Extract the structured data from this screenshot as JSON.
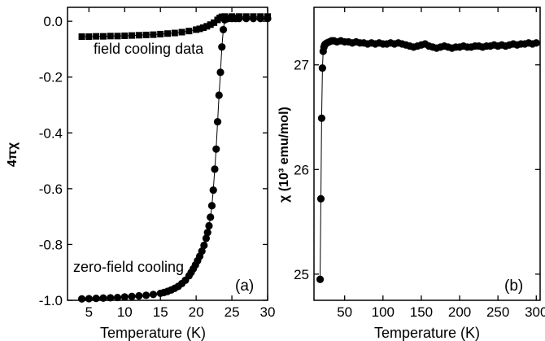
{
  "chart_data": [
    {
      "type": "scatter",
      "panel_label": "(a)",
      "xlabel": "Temperature (K)",
      "ylabel": "4πχ",
      "xlim": [
        2,
        30
      ],
      "ylim": [
        -1.0,
        0.05
      ],
      "xticks": [
        5,
        10,
        15,
        20,
        25,
        30
      ],
      "yticks": [
        0.0,
        -0.2,
        -0.4,
        -0.6,
        -0.8,
        -1.0
      ],
      "ytick_labels": [
        "0.0",
        "-0.2",
        "-0.4",
        "-0.6",
        "-0.8",
        "-1.0"
      ],
      "annotations": [
        "field cooling data",
        "zero-field cooling"
      ],
      "series": [
        {
          "marker": "square",
          "x": [
            4,
            5,
            6,
            7,
            8,
            9,
            10,
            11,
            12,
            13,
            14,
            15,
            16,
            17,
            18,
            19,
            20,
            20.5,
            21,
            21.5,
            22,
            22.5,
            23,
            23.3,
            23.6,
            24,
            25,
            26,
            27,
            28,
            29,
            30
          ],
          "y": [
            -0.055,
            -0.055,
            -0.054,
            -0.054,
            -0.053,
            -0.053,
            -0.052,
            -0.051,
            -0.05,
            -0.049,
            -0.048,
            -0.046,
            -0.044,
            -0.042,
            -0.039,
            -0.035,
            -0.03,
            -0.027,
            -0.023,
            -0.018,
            -0.012,
            -0.005,
            0.005,
            0.012,
            0.016,
            0.017,
            0.017,
            0.017,
            0.017,
            0.017,
            0.017,
            0.017
          ]
        },
        {
          "marker": "circle",
          "x": [
            4,
            5,
            6,
            7,
            8,
            9,
            10,
            11,
            12,
            13,
            14,
            15,
            15.5,
            16,
            16.5,
            17,
            17.5,
            18,
            18.5,
            19,
            19.3,
            19.6,
            19.9,
            20.2,
            20.5,
            20.8,
            21.1,
            21.4,
            21.6,
            21.8,
            22,
            22.2,
            22.4,
            22.6,
            22.8,
            23,
            23.2,
            23.4,
            23.6,
            23.8,
            24,
            24.5,
            25,
            25.5,
            26,
            27,
            28,
            29,
            30
          ],
          "y": [
            -0.995,
            -0.994,
            -0.993,
            -0.992,
            -0.991,
            -0.99,
            -0.988,
            -0.986,
            -0.984,
            -0.982,
            -0.979,
            -0.975,
            -0.972,
            -0.968,
            -0.963,
            -0.957,
            -0.95,
            -0.94,
            -0.928,
            -0.912,
            -0.9,
            -0.887,
            -0.873,
            -0.858,
            -0.842,
            -0.824,
            -0.803,
            -0.778,
            -0.757,
            -0.733,
            -0.702,
            -0.661,
            -0.605,
            -0.53,
            -0.458,
            -0.36,
            -0.265,
            -0.183,
            -0.092,
            -0.03,
            0.005,
            0.01,
            0.01,
            0.01,
            0.01,
            0.01,
            0.01,
            0.01,
            0.01
          ]
        }
      ]
    },
    {
      "type": "scatter",
      "panel_label": "(b)",
      "xlabel": "Temperature (K)",
      "ylabel": "χ (10³ emu/mol)",
      "xlim": [
        10,
        305
      ],
      "ylim": [
        24.75,
        27.55
      ],
      "xticks": [
        50,
        100,
        150,
        200,
        250,
        300
      ],
      "yticks": [
        25,
        26,
        27
      ],
      "series": [
        {
          "marker": "circle",
          "x": [
            18,
            19,
            20,
            21,
            22,
            23,
            24,
            25,
            27,
            30,
            33,
            36,
            40,
            45,
            50,
            55,
            60,
            65,
            70,
            75,
            80,
            85,
            90,
            95,
            100,
            105,
            110,
            115,
            120,
            125,
            130,
            135,
            140,
            145,
            150,
            155,
            160,
            165,
            170,
            175,
            180,
            185,
            190,
            195,
            200,
            205,
            210,
            215,
            220,
            225,
            230,
            235,
            240,
            245,
            250,
            255,
            260,
            265,
            270,
            275,
            280,
            285,
            290,
            295,
            300
          ],
          "y": [
            24.95,
            25.72,
            26.49,
            26.97,
            27.13,
            27.17,
            27.19,
            27.2,
            27.21,
            27.22,
            27.23,
            27.23,
            27.22,
            27.23,
            27.22,
            27.22,
            27.21,
            27.22,
            27.21,
            27.21,
            27.2,
            27.21,
            27.2,
            27.21,
            27.2,
            27.2,
            27.21,
            27.2,
            27.21,
            27.2,
            27.19,
            27.18,
            27.17,
            27.18,
            27.19,
            27.2,
            27.18,
            27.17,
            27.16,
            27.17,
            27.18,
            27.17,
            27.16,
            27.17,
            27.17,
            27.18,
            27.17,
            27.17,
            27.18,
            27.18,
            27.17,
            27.18,
            27.18,
            27.19,
            27.18,
            27.19,
            27.18,
            27.19,
            27.2,
            27.19,
            27.2,
            27.2,
            27.21,
            27.2,
            27.21
          ]
        }
      ]
    }
  ]
}
